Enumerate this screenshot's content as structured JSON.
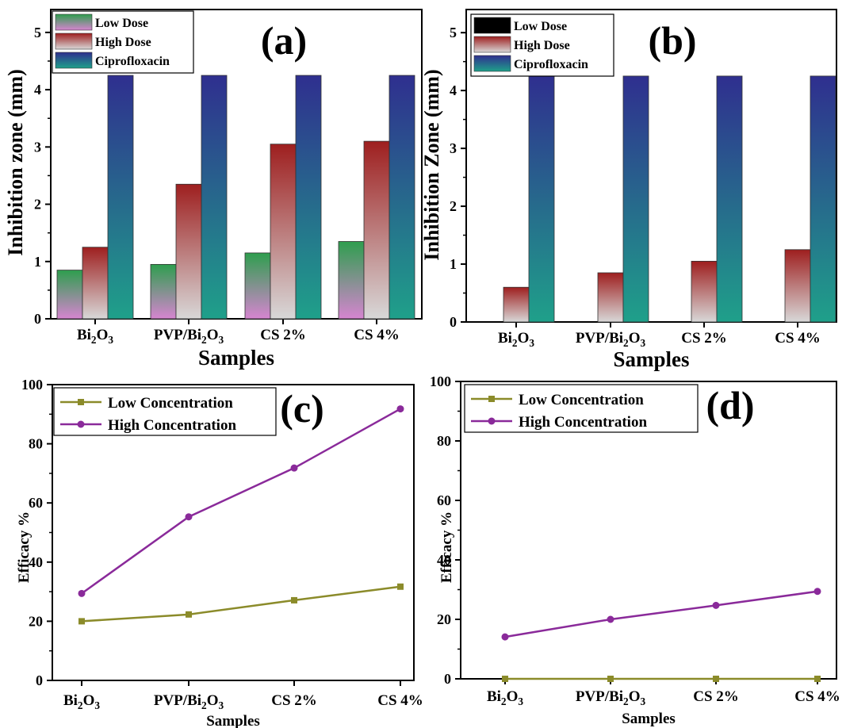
{
  "chart_data": [
    {
      "id": "a",
      "type": "bar",
      "panel_label": "(a)",
      "ylabel": "Inhibition zone (mm)",
      "xlabel": "Samples",
      "categories": [
        {
          "base": "Bi",
          "sub": "2",
          "rest": "O",
          "sub2": "3"
        },
        {
          "base": "PVP/Bi",
          "sub": "2",
          "rest": "O",
          "sub2": "3"
        },
        {
          "base": "CS 2%",
          "sub": "",
          "rest": "",
          "sub2": ""
        },
        {
          "base": "CS 4%",
          "sub": "",
          "rest": "",
          "sub2": ""
        }
      ],
      "ylim": [
        0,
        5.4
      ],
      "yticks": [
        "0",
        "1",
        "2",
        "3",
        "4",
        "5"
      ],
      "series": [
        {
          "name": "Low Dose",
          "values": [
            0.85,
            0.95,
            1.15,
            1.35
          ],
          "gradient": [
            "#2e9e4e",
            "#d685d0"
          ]
        },
        {
          "name": "High Dose",
          "values": [
            1.25,
            2.35,
            3.05,
            3.1
          ],
          "gradient": [
            "#9e1f1f",
            "#d8d8d8"
          ]
        },
        {
          "name": "Ciprofloxacin",
          "values": [
            4.25,
            4.25,
            4.25,
            4.25
          ],
          "gradient": [
            "#2f2f8f",
            "#1fa08a"
          ]
        }
      ],
      "legend": "top-left"
    },
    {
      "id": "b",
      "type": "bar",
      "panel_label": "(b)",
      "ylabel": "Inhibition Zone (mm)",
      "xlabel": "Samples",
      "categories": [
        {
          "base": "Bi",
          "sub": "2",
          "rest": "O",
          "sub2": "3"
        },
        {
          "base": "PVP/Bi",
          "sub": "2",
          "rest": "O",
          "sub2": "3"
        },
        {
          "base": "CS 2%",
          "sub": "",
          "rest": "",
          "sub2": ""
        },
        {
          "base": "CS 4%",
          "sub": "",
          "rest": "",
          "sub2": ""
        }
      ],
      "ylim": [
        0,
        5.4
      ],
      "yticks": [
        "0",
        "1",
        "2",
        "3",
        "4",
        "5"
      ],
      "series": [
        {
          "name": "Low Dose",
          "values": [
            0,
            0,
            0,
            0
          ],
          "gradient": [
            "#000000",
            "#000000"
          ]
        },
        {
          "name": "High Dose",
          "values": [
            0.6,
            0.85,
            1.05,
            1.25
          ],
          "gradient": [
            "#9e1f1f",
            "#d8d8d8"
          ]
        },
        {
          "name": "Ciprofloxacin",
          "values": [
            4.25,
            4.25,
            4.25,
            4.25
          ],
          "gradient": [
            "#2f2f8f",
            "#1fa08a"
          ]
        }
      ],
      "legend": "top-left"
    },
    {
      "id": "c",
      "type": "line",
      "panel_label": "(c)",
      "ylabel": "Efficacy %",
      "xlabel": "Samples",
      "categories": [
        {
          "base": "Bi",
          "sub": "2",
          "rest": "O",
          "sub2": "3"
        },
        {
          "base": "PVP/Bi",
          "sub": "2",
          "rest": "O",
          "sub2": "3"
        },
        {
          "base": "CS 2%",
          "sub": "",
          "rest": "",
          "sub2": ""
        },
        {
          "base": "CS 4%",
          "sub": "",
          "rest": "",
          "sub2": ""
        }
      ],
      "ylim": [
        0,
        100
      ],
      "yticks": [
        "0",
        "20",
        "40",
        "60",
        "80",
        "100"
      ],
      "series": [
        {
          "name": "Low Concentration",
          "values": [
            20,
            22.3,
            27.1,
            31.7
          ],
          "color": "#8b8b2a",
          "marker": "square"
        },
        {
          "name": "High Concentration",
          "values": [
            29.4,
            55.3,
            71.8,
            91.8
          ],
          "color": "#8a2a9a",
          "marker": "circle"
        }
      ],
      "legend": "top-left"
    },
    {
      "id": "d",
      "type": "line",
      "panel_label": "(d)",
      "ylabel": "Efficacy %",
      "xlabel": "Samples",
      "categories": [
        {
          "base": "Bi",
          "sub": "2",
          "rest": "O",
          "sub2": "3"
        },
        {
          "base": "PVP/Bi",
          "sub": "2",
          "rest": "O",
          "sub2": "3"
        },
        {
          "base": "CS 2%",
          "sub": "",
          "rest": "",
          "sub2": ""
        },
        {
          "base": "CS 4%",
          "sub": "",
          "rest": "",
          "sub2": ""
        }
      ],
      "ylim": [
        0,
        100
      ],
      "yticks": [
        "0",
        "20",
        "40",
        "60",
        "80",
        "100"
      ],
      "series": [
        {
          "name": "Low Concentration",
          "values": [
            0,
            0,
            0,
            0
          ],
          "color": "#8b8b2a",
          "marker": "square"
        },
        {
          "name": "High Concentration",
          "values": [
            14.1,
            20,
            24.7,
            29.4
          ],
          "color": "#8a2a9a",
          "marker": "circle"
        }
      ],
      "legend": "top-left"
    }
  ]
}
